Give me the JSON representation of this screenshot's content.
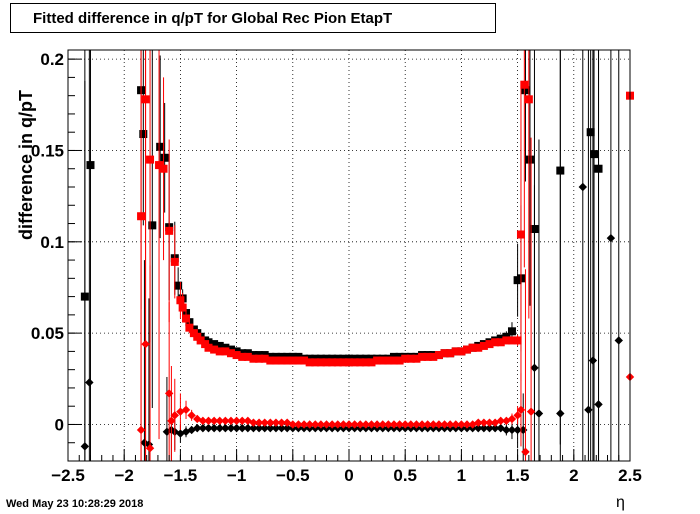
{
  "chart_data": {
    "type": "scatter",
    "title": "Fitted difference in q/pT for Global Rec Pion EtapT",
    "xlabel": "η",
    "ylabel": "difference in q/pT",
    "xlim": [
      -2.5,
      2.5
    ],
    "ylim": [
      -0.02,
      0.205
    ],
    "xticks": [
      -2.5,
      -2,
      -1.5,
      -1,
      -0.5,
      0,
      0.5,
      1,
      1.5,
      2,
      2.5
    ],
    "yticks": [
      0,
      0.05,
      0.1,
      0.15,
      0.2
    ],
    "xtick_labels": [
      "−2.5",
      "−2",
      "−1.5",
      "−1",
      "−0.5",
      "0",
      "0.5",
      "1",
      "1.5",
      "2",
      "2.5"
    ],
    "ytick_labels": [
      "0",
      "0.05",
      "0.1",
      "0.15",
      "0.2"
    ],
    "grid": true,
    "datestamp": "Wed May 23 10:28:29 2018",
    "colors": {
      "black_series": "#000000",
      "red_series": "#ff0000"
    },
    "series": [
      {
        "marker": "square",
        "color": "#000000",
        "x": [
          -2.35,
          -2.3,
          -1.85,
          -1.83,
          -1.75,
          -1.68,
          -1.64,
          -1.6,
          -1.55,
          -1.52,
          -1.48,
          -1.45,
          -1.42,
          -1.38,
          -1.35,
          -1.32,
          -1.28,
          -1.25,
          -1.2,
          -1.15,
          -1.1,
          -1.05,
          -1.0,
          -0.95,
          -0.9,
          -0.85,
          -0.8,
          -0.75,
          -0.7,
          -0.65,
          -0.6,
          -0.55,
          -0.5,
          -0.45,
          -0.4,
          -0.35,
          -0.3,
          -0.25,
          -0.2,
          -0.15,
          -0.1,
          -0.05,
          0.0,
          0.05,
          0.1,
          0.15,
          0.2,
          0.25,
          0.3,
          0.35,
          0.4,
          0.45,
          0.5,
          0.55,
          0.6,
          0.65,
          0.7,
          0.75,
          0.8,
          0.85,
          0.9,
          0.95,
          1.0,
          1.05,
          1.1,
          1.15,
          1.2,
          1.25,
          1.3,
          1.35,
          1.4,
          1.45,
          1.5,
          1.53,
          1.57,
          1.61,
          1.65,
          1.88,
          2.15,
          2.18,
          2.22
        ],
        "y": [
          0.07,
          0.142,
          0.183,
          0.159,
          0.109,
          0.152,
          0.146,
          0.108,
          0.091,
          0.076,
          0.069,
          0.061,
          0.056,
          0.052,
          0.05,
          0.048,
          0.046,
          0.045,
          0.044,
          0.043,
          0.042,
          0.041,
          0.04,
          0.039,
          0.039,
          0.038,
          0.038,
          0.038,
          0.037,
          0.037,
          0.037,
          0.037,
          0.037,
          0.037,
          0.036,
          0.036,
          0.036,
          0.036,
          0.036,
          0.036,
          0.036,
          0.036,
          0.036,
          0.036,
          0.036,
          0.036,
          0.036,
          0.036,
          0.036,
          0.036,
          0.037,
          0.037,
          0.037,
          0.037,
          0.037,
          0.038,
          0.038,
          0.038,
          0.038,
          0.039,
          0.039,
          0.04,
          0.04,
          0.041,
          0.042,
          0.043,
          0.044,
          0.045,
          0.046,
          0.047,
          0.048,
          0.051,
          0.079,
          0.08,
          0.183,
          0.145,
          0.107,
          0.139,
          0.16,
          0.148,
          0.14
        ],
        "err": [
          0.2,
          0.2,
          0.12,
          0.05,
          0.1,
          0.05,
          0.03,
          0.04,
          0.02,
          0.01,
          0.005,
          0.004,
          0.003,
          0.002,
          0.002,
          0.002,
          0.002,
          0.001,
          0.001,
          0.001,
          0.001,
          0.001,
          0.001,
          0.001,
          0.001,
          0.001,
          0.001,
          0.001,
          0.001,
          0.001,
          0.001,
          0.001,
          0.001,
          0.001,
          0.001,
          0.001,
          0.001,
          0.001,
          0.001,
          0.001,
          0.001,
          0.001,
          0.001,
          0.001,
          0.001,
          0.001,
          0.001,
          0.001,
          0.001,
          0.001,
          0.001,
          0.001,
          0.001,
          0.001,
          0.001,
          0.001,
          0.001,
          0.001,
          0.001,
          0.001,
          0.001,
          0.001,
          0.001,
          0.001,
          0.001,
          0.001,
          0.002,
          0.002,
          0.002,
          0.002,
          0.003,
          0.005,
          0.02,
          0.04,
          0.05,
          0.08,
          0.1,
          0.15,
          0.2,
          0.2,
          0.2
        ]
      },
      {
        "marker": "square",
        "color": "#ff0000",
        "x": [
          -1.85,
          -1.81,
          -1.77,
          -1.69,
          -1.65,
          -1.6,
          -1.55,
          -1.5,
          -1.48,
          -1.45,
          -1.42,
          -1.38,
          -1.35,
          -1.32,
          -1.28,
          -1.25,
          -1.2,
          -1.15,
          -1.1,
          -1.05,
          -1.0,
          -0.95,
          -0.9,
          -0.85,
          -0.8,
          -0.75,
          -0.7,
          -0.65,
          -0.6,
          -0.55,
          -0.5,
          -0.45,
          -0.4,
          -0.35,
          -0.3,
          -0.25,
          -0.2,
          -0.15,
          -0.1,
          -0.05,
          0.0,
          0.05,
          0.1,
          0.15,
          0.2,
          0.25,
          0.3,
          0.35,
          0.4,
          0.45,
          0.5,
          0.55,
          0.6,
          0.65,
          0.7,
          0.75,
          0.8,
          0.85,
          0.9,
          0.95,
          1.0,
          1.05,
          1.1,
          1.15,
          1.2,
          1.25,
          1.3,
          1.35,
          1.4,
          1.45,
          1.5,
          1.53,
          1.56,
          1.6,
          2.5
        ],
        "y": [
          0.114,
          0.178,
          0.145,
          0.142,
          0.14,
          0.106,
          0.089,
          0.068,
          0.064,
          0.058,
          0.053,
          0.05,
          0.048,
          0.046,
          0.044,
          0.042,
          0.041,
          0.04,
          0.04,
          0.039,
          0.038,
          0.037,
          0.037,
          0.036,
          0.036,
          0.036,
          0.035,
          0.035,
          0.035,
          0.035,
          0.035,
          0.035,
          0.035,
          0.034,
          0.034,
          0.034,
          0.034,
          0.034,
          0.034,
          0.034,
          0.034,
          0.034,
          0.034,
          0.034,
          0.034,
          0.035,
          0.035,
          0.035,
          0.035,
          0.035,
          0.036,
          0.036,
          0.036,
          0.037,
          0.037,
          0.037,
          0.038,
          0.039,
          0.039,
          0.04,
          0.04,
          0.041,
          0.042,
          0.042,
          0.043,
          0.044,
          0.045,
          0.045,
          0.046,
          0.046,
          0.046,
          0.104,
          0.186,
          0.178,
          0.18
        ],
        "err": [
          0.2,
          0.2,
          0.1,
          0.15,
          0.05,
          0.05,
          0.02,
          0.01,
          0.008,
          0.005,
          0.003,
          0.002,
          0.002,
          0.002,
          0.001,
          0.001,
          0.001,
          0.001,
          0.001,
          0.001,
          0.001,
          0.001,
          0.001,
          0.001,
          0.001,
          0.001,
          0.001,
          0.001,
          0.001,
          0.001,
          0.001,
          0.001,
          0.001,
          0.001,
          0.001,
          0.001,
          0.001,
          0.001,
          0.001,
          0.001,
          0.001,
          0.001,
          0.001,
          0.001,
          0.001,
          0.001,
          0.001,
          0.001,
          0.001,
          0.001,
          0.001,
          0.001,
          0.001,
          0.001,
          0.001,
          0.001,
          0.001,
          0.001,
          0.001,
          0.001,
          0.001,
          0.001,
          0.001,
          0.001,
          0.001,
          0.001,
          0.001,
          0.002,
          0.002,
          0.002,
          0.003,
          0.08,
          0.1,
          0.12,
          0.2
        ]
      },
      {
        "marker": "diamond",
        "color": "#000000",
        "x": [
          -2.35,
          -2.31,
          -1.82,
          -1.78,
          -1.62,
          -1.58,
          -1.55,
          -1.5,
          -1.45,
          -1.4,
          -1.35,
          -1.3,
          -1.25,
          -1.2,
          -1.15,
          -1.1,
          -1.05,
          -1.0,
          -0.95,
          -0.9,
          -0.85,
          -0.8,
          -0.75,
          -0.7,
          -0.65,
          -0.6,
          -0.55,
          -0.5,
          -0.45,
          -0.4,
          -0.35,
          -0.3,
          -0.25,
          -0.2,
          -0.15,
          -0.1,
          -0.05,
          0.0,
          0.05,
          0.1,
          0.15,
          0.2,
          0.25,
          0.3,
          0.35,
          0.4,
          0.45,
          0.5,
          0.55,
          0.6,
          0.65,
          0.7,
          0.75,
          0.8,
          0.85,
          0.9,
          0.95,
          1.0,
          1.05,
          1.1,
          1.15,
          1.2,
          1.25,
          1.3,
          1.35,
          1.4,
          1.45,
          1.5,
          1.55,
          1.65,
          1.69,
          1.88,
          2.08,
          2.13,
          2.17,
          2.22,
          2.33,
          2.4
        ],
        "y": [
          -0.012,
          0.023,
          -0.01,
          -0.011,
          -0.004,
          -0.003,
          -0.004,
          -0.005,
          -0.004,
          -0.003,
          -0.002,
          -0.002,
          -0.002,
          -0.002,
          -0.002,
          -0.002,
          -0.002,
          -0.002,
          -0.002,
          -0.002,
          -0.002,
          -0.002,
          -0.002,
          -0.002,
          -0.002,
          -0.002,
          -0.002,
          -0.002,
          -0.002,
          -0.002,
          -0.002,
          -0.002,
          -0.002,
          -0.002,
          -0.002,
          -0.002,
          -0.002,
          -0.002,
          -0.002,
          -0.002,
          -0.002,
          -0.002,
          -0.002,
          -0.002,
          -0.002,
          -0.002,
          -0.002,
          -0.002,
          -0.002,
          -0.002,
          -0.002,
          -0.002,
          -0.002,
          -0.002,
          -0.002,
          -0.002,
          -0.002,
          -0.002,
          -0.002,
          -0.002,
          -0.002,
          -0.002,
          -0.002,
          -0.002,
          -0.002,
          -0.003,
          -0.003,
          -0.003,
          -0.003,
          0.031,
          0.006,
          0.006,
          0.13,
          0.008,
          0.035,
          0.011,
          0.102,
          0.046
        ],
        "err": [
          0.2,
          0.2,
          0.1,
          0.08,
          0.03,
          0.02,
          0.01,
          0.005,
          0.003,
          0.002,
          0.002,
          0.001,
          0.001,
          0.001,
          0.001,
          0.001,
          0.001,
          0.001,
          0.001,
          0.001,
          0.001,
          0.001,
          0.001,
          0.001,
          0.001,
          0.001,
          0.001,
          0.001,
          0.001,
          0.001,
          0.001,
          0.001,
          0.001,
          0.001,
          0.001,
          0.001,
          0.001,
          0.001,
          0.001,
          0.001,
          0.001,
          0.001,
          0.001,
          0.001,
          0.001,
          0.001,
          0.001,
          0.001,
          0.001,
          0.001,
          0.001,
          0.001,
          0.001,
          0.001,
          0.001,
          0.001,
          0.001,
          0.001,
          0.001,
          0.001,
          0.001,
          0.001,
          0.001,
          0.002,
          0.002,
          0.003,
          0.005,
          0.01,
          0.02,
          0.1,
          0.15,
          0.2,
          0.2,
          0.2,
          0.2,
          0.2,
          0.2,
          0.2
        ]
      },
      {
        "marker": "diamond",
        "color": "#ff0000",
        "x": [
          -1.85,
          -1.81,
          -1.77,
          -1.6,
          -1.58,
          -1.55,
          -1.5,
          -1.45,
          -1.4,
          -1.35,
          -1.3,
          -1.25,
          -1.2,
          -1.15,
          -1.1,
          -1.05,
          -1.0,
          -0.95,
          -0.9,
          -0.85,
          -0.8,
          -0.75,
          -0.7,
          -0.65,
          -0.6,
          -0.55,
          -0.5,
          -0.45,
          -0.4,
          -0.35,
          -0.3,
          -0.25,
          -0.2,
          -0.15,
          -0.1,
          -0.05,
          0.0,
          0.05,
          0.1,
          0.15,
          0.2,
          0.25,
          0.3,
          0.35,
          0.4,
          0.45,
          0.5,
          0.55,
          0.6,
          0.65,
          0.7,
          0.75,
          0.8,
          0.85,
          0.9,
          0.95,
          1.0,
          1.05,
          1.1,
          1.15,
          1.2,
          1.25,
          1.3,
          1.35,
          1.4,
          1.45,
          1.5,
          1.53,
          1.57,
          1.62,
          2.5
        ],
        "y": [
          -0.003,
          0.044,
          -0.013,
          0.017,
          0.002,
          0.005,
          0.007,
          0.008,
          0.005,
          0.003,
          0.002,
          0.002,
          0.002,
          0.002,
          0.002,
          0.002,
          0.002,
          0.002,
          0.002,
          0.001,
          0.001,
          0.001,
          0.001,
          0.001,
          0.001,
          0.001,
          0.0,
          0.0,
          0.0,
          0.0,
          0.0,
          0.0,
          0.0,
          0.0,
          0.0,
          0.0,
          0.0,
          0.0,
          0.0,
          0.0,
          0.0,
          0.0,
          0.0,
          0.0,
          0.0,
          0.0,
          0.0,
          0.0,
          0.0,
          0.0,
          0.0,
          0.0,
          0.0,
          0.0,
          0.0,
          0.0,
          0.0,
          0.0,
          0.0,
          0.001,
          0.001,
          0.001,
          0.001,
          0.002,
          0.002,
          0.003,
          0.005,
          0.008,
          -0.015,
          0.007,
          0.026
        ],
        "err": [
          0.2,
          0.2,
          0.1,
          0.05,
          0.03,
          0.02,
          0.01,
          0.005,
          0.003,
          0.002,
          0.002,
          0.001,
          0.001,
          0.001,
          0.001,
          0.001,
          0.001,
          0.001,
          0.001,
          0.001,
          0.001,
          0.001,
          0.001,
          0.001,
          0.001,
          0.001,
          0.001,
          0.001,
          0.001,
          0.001,
          0.001,
          0.001,
          0.001,
          0.001,
          0.001,
          0.001,
          0.001,
          0.001,
          0.001,
          0.001,
          0.001,
          0.001,
          0.001,
          0.001,
          0.001,
          0.001,
          0.001,
          0.001,
          0.001,
          0.001,
          0.001,
          0.001,
          0.001,
          0.001,
          0.001,
          0.001,
          0.001,
          0.001,
          0.001,
          0.001,
          0.001,
          0.001,
          0.002,
          0.002,
          0.002,
          0.003,
          0.005,
          0.02,
          0.1,
          0.15,
          0.2
        ]
      }
    ]
  }
}
